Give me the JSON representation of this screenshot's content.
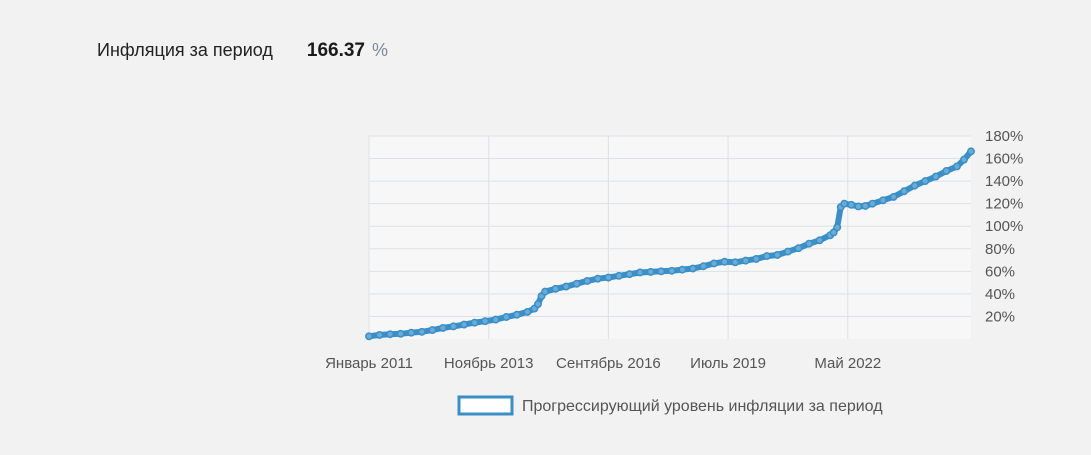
{
  "summary": {
    "label": "Инфляция за период",
    "value": "166.37",
    "unit": "%"
  },
  "chart_data": {
    "type": "line",
    "title": "",
    "xlabel": "",
    "ylabel": "",
    "x_start": "2011-01",
    "x_end": "2025-04",
    "x_tick_labels": [
      {
        "label": "Январь 2011",
        "date": "2011-01"
      },
      {
        "label": "Ноябрь 2013",
        "date": "2013-11"
      },
      {
        "label": "Сентябрь 2016",
        "date": "2016-09"
      },
      {
        "label": "Июль 2019",
        "date": "2019-07"
      },
      {
        "label": "Май 2022",
        "date": "2022-05"
      }
    ],
    "y_ticks": [
      20,
      40,
      60,
      80,
      100,
      120,
      140,
      160,
      180
    ],
    "y_tick_suffix": "%",
    "ylim": [
      0,
      180
    ],
    "grid": true,
    "legend_position": "bottom",
    "series": [
      {
        "name": "Прогрессирующий уровень инфляции за период",
        "color": "#3a8fc7",
        "points": [
          [
            "2011-01",
            2.4
          ],
          [
            "2011-04",
            3.6
          ],
          [
            "2011-07",
            4.2
          ],
          [
            "2011-10",
            4.6
          ],
          [
            "2012-01",
            5.6
          ],
          [
            "2012-04",
            6.4
          ],
          [
            "2012-07",
            7.9
          ],
          [
            "2012-10",
            9.8
          ],
          [
            "2013-01",
            11.2
          ],
          [
            "2013-04",
            12.8
          ],
          [
            "2013-07",
            14.5
          ],
          [
            "2013-10",
            15.8
          ],
          [
            "2014-01",
            17.2
          ],
          [
            "2014-04",
            19.5
          ],
          [
            "2014-07",
            21.5
          ],
          [
            "2014-10",
            24.0
          ],
          [
            "2014-12",
            27.0
          ],
          [
            "2015-01",
            31.0
          ],
          [
            "2015-02",
            38.0
          ],
          [
            "2015-03",
            42.0
          ],
          [
            "2015-06",
            44.5
          ],
          [
            "2015-09",
            46.5
          ],
          [
            "2015-12",
            49.0
          ],
          [
            "2016-03",
            51.5
          ],
          [
            "2016-06",
            53.5
          ],
          [
            "2016-09",
            54.5
          ],
          [
            "2016-12",
            56.0
          ],
          [
            "2017-03",
            57.5
          ],
          [
            "2017-06",
            59.0
          ],
          [
            "2017-09",
            59.5
          ],
          [
            "2017-12",
            60.0
          ],
          [
            "2018-03",
            60.5
          ],
          [
            "2018-06",
            61.5
          ],
          [
            "2018-09",
            62.5
          ],
          [
            "2018-12",
            64.5
          ],
          [
            "2019-03",
            67.0
          ],
          [
            "2019-06",
            68.5
          ],
          [
            "2019-09",
            68.0
          ],
          [
            "2019-12",
            69.5
          ],
          [
            "2020-03",
            71.0
          ],
          [
            "2020-06",
            73.5
          ],
          [
            "2020-09",
            74.5
          ],
          [
            "2020-12",
            77.5
          ],
          [
            "2021-03",
            80.5
          ],
          [
            "2021-06",
            84.5
          ],
          [
            "2021-09",
            87.5
          ],
          [
            "2021-12",
            92.0
          ],
          [
            "2022-01",
            94.5
          ],
          [
            "2022-02",
            99.0
          ],
          [
            "2022-03",
            117.0
          ],
          [
            "2022-04",
            120.0
          ],
          [
            "2022-06",
            119.0
          ],
          [
            "2022-08",
            117.5
          ],
          [
            "2022-10",
            118.0
          ],
          [
            "2022-12",
            120.0
          ],
          [
            "2023-03",
            123.0
          ],
          [
            "2023-06",
            126.0
          ],
          [
            "2023-09",
            131.0
          ],
          [
            "2023-12",
            136.0
          ],
          [
            "2024-03",
            140.0
          ],
          [
            "2024-06",
            144.0
          ],
          [
            "2024-09",
            149.0
          ],
          [
            "2024-12",
            153.0
          ],
          [
            "2025-02",
            159.0
          ],
          [
            "2025-04",
            166.37
          ]
        ]
      }
    ]
  }
}
